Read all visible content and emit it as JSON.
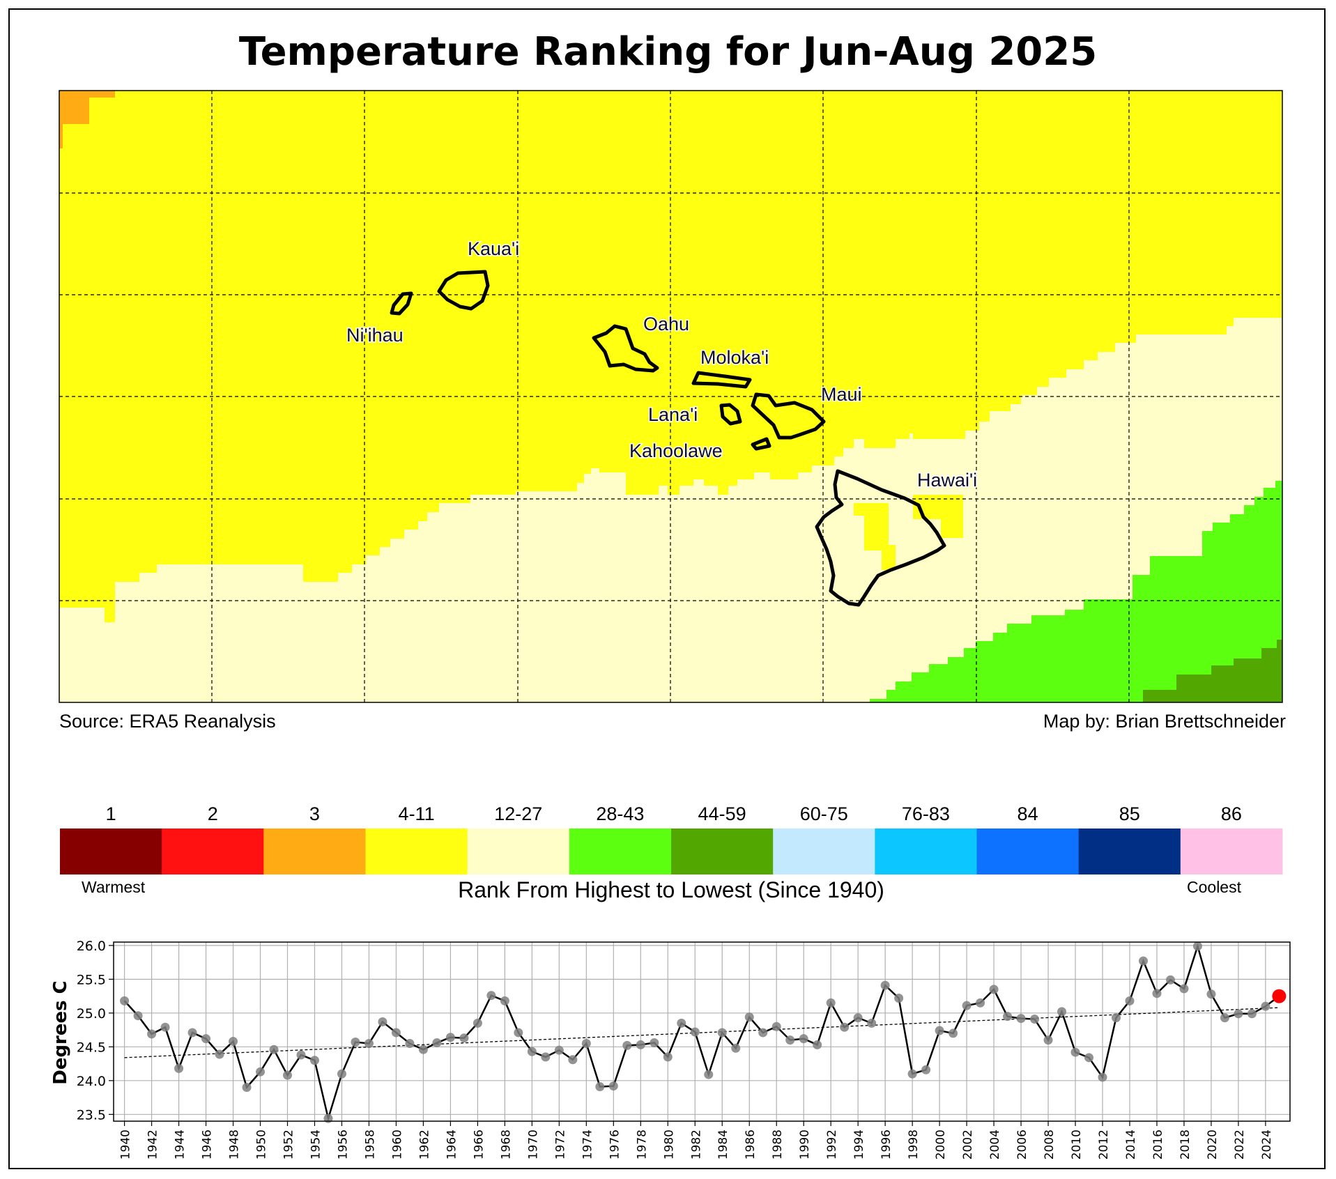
{
  "title": "Temperature Ranking for Jun-Aug 2025",
  "source_text": "Source: ERA5 Reanalysis",
  "credit_text": "Map by: Brian Brettschneider",
  "map": {
    "islands": [
      {
        "name": "Kaua'i"
      },
      {
        "name": "Ni'ihau"
      },
      {
        "name": "Oahu"
      },
      {
        "name": "Moloka'i"
      },
      {
        "name": "Maui"
      },
      {
        "name": "Lana'i"
      },
      {
        "name": "Kahoolawe"
      },
      {
        "name": "Hawai'i"
      }
    ],
    "grid": "dashed lines",
    "background_rank_class": "4-11"
  },
  "legend": {
    "title": "Rank From Highest to Lowest (Since 1940)",
    "low_label": "Warmest",
    "high_label": "Coolest",
    "classes": [
      {
        "label": "1",
        "color": "#870000"
      },
      {
        "label": "2",
        "color": "#ff1111"
      },
      {
        "label": "3",
        "color": "#ffab13"
      },
      {
        "label": "4-11",
        "color": "#ffff11"
      },
      {
        "label": "12-27",
        "color": "#fffdc8"
      },
      {
        "label": "28-43",
        "color": "#5dff11"
      },
      {
        "label": "44-59",
        "color": "#52a700"
      },
      {
        "label": "60-75",
        "color": "#c2e9fd"
      },
      {
        "label": "76-83",
        "color": "#0cc6ff"
      },
      {
        "label": "84",
        "color": "#0d72ff"
      },
      {
        "label": "85",
        "color": "#002f85"
      },
      {
        "label": "86",
        "color": "#ffc2e6"
      }
    ]
  },
  "chart_data": {
    "type": "line",
    "ylabel": "Degrees C",
    "xlabel": "",
    "ylim": [
      23.4,
      26.05
    ],
    "xlim": [
      1939.2,
      2025.8
    ],
    "yticks": [
      "23.5",
      "24.0",
      "24.5",
      "25.0",
      "25.5",
      "26.0"
    ],
    "xticks": [
      "1940",
      "1942",
      "1944",
      "1946",
      "1948",
      "1950",
      "1952",
      "1954",
      "1956",
      "1958",
      "1960",
      "1962",
      "1964",
      "1966",
      "1968",
      "1970",
      "1972",
      "1974",
      "1976",
      "1978",
      "1980",
      "1982",
      "1984",
      "1986",
      "1988",
      "1990",
      "1992",
      "1994",
      "1996",
      "1998",
      "2000",
      "2002",
      "2004",
      "2006",
      "2008",
      "2010",
      "2012",
      "2014",
      "2016",
      "2018",
      "2020",
      "2022",
      "2024"
    ],
    "grid": true,
    "series": [
      {
        "x": [
          1940,
          1941,
          1942,
          1943,
          1944,
          1945,
          1946,
          1947,
          1948,
          1949,
          1950,
          1951,
          1952,
          1953,
          1954,
          1955,
          1956,
          1957,
          1958,
          1959,
          1960,
          1961,
          1962,
          1963,
          1964,
          1965,
          1966,
          1967,
          1968,
          1969,
          1970,
          1971,
          1972,
          1973,
          1974,
          1975,
          1976,
          1977,
          1978,
          1979,
          1980,
          1981,
          1982,
          1983,
          1984,
          1985,
          1986,
          1987,
          1988,
          1989,
          1990,
          1991,
          1992,
          1993,
          1994,
          1995,
          1996,
          1997,
          1998,
          1999,
          2000,
          2001,
          2002,
          2003,
          2004,
          2005,
          2006,
          2007,
          2008,
          2009,
          2010,
          2011,
          2012,
          2013,
          2014,
          2015,
          2016,
          2017,
          2018,
          2019,
          2020,
          2021,
          2022,
          2023,
          2024,
          2025
        ],
        "y": [
          25.18,
          24.96,
          24.69,
          24.79,
          24.18,
          24.71,
          24.62,
          24.39,
          24.58,
          23.9,
          24.13,
          24.46,
          24.08,
          24.38,
          24.3,
          23.44,
          24.1,
          24.57,
          24.55,
          24.87,
          24.71,
          24.55,
          24.46,
          24.56,
          24.64,
          24.63,
          24.85,
          25.26,
          25.18,
          24.71,
          24.43,
          24.35,
          24.45,
          24.31,
          24.55,
          23.91,
          23.92,
          24.52,
          24.53,
          24.56,
          24.35,
          24.85,
          24.72,
          24.09,
          24.71,
          24.48,
          24.94,
          24.71,
          24.8,
          24.6,
          24.62,
          24.53,
          25.15,
          24.79,
          24.93,
          24.85,
          25.41,
          25.22,
          24.1,
          24.16,
          24.74,
          24.7,
          25.11,
          25.15,
          25.35,
          24.95,
          24.92,
          24.91,
          24.6,
          25.02,
          24.42,
          24.34,
          24.05,
          24.93,
          25.18,
          25.77,
          25.29,
          25.49,
          25.36,
          25.99,
          25.28,
          24.93,
          24.99,
          24.99,
          25.1,
          25.25
        ]
      }
    ],
    "trend": {
      "x": [
        1940,
        2025
      ],
      "y": [
        24.34,
        25.08
      ]
    },
    "highlight_year": 2025
  }
}
